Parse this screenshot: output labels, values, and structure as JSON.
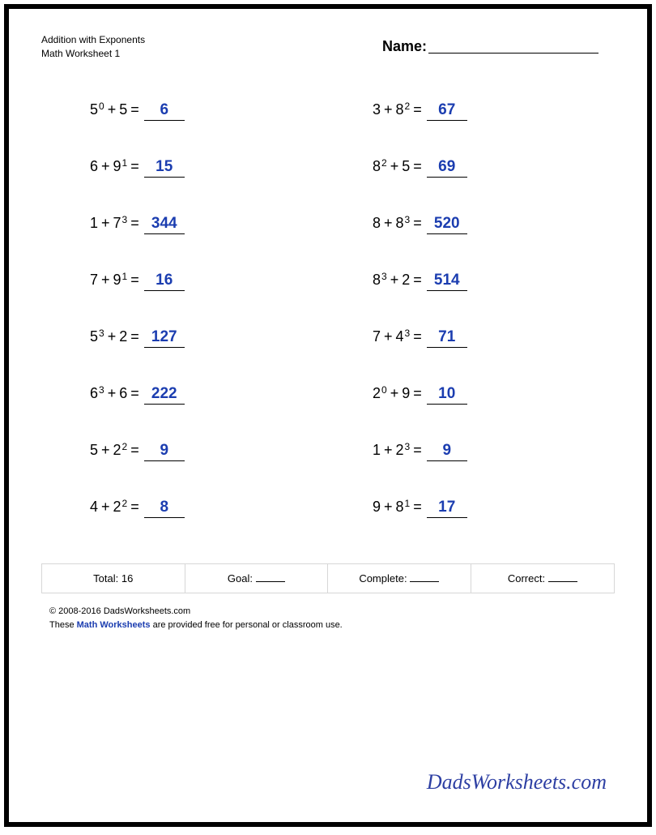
{
  "header": {
    "title_line1": "Addition with Exponents",
    "title_line2": "Math Worksheet 1",
    "name_label": "Name:"
  },
  "answer_color": "#1b3db0",
  "problems": [
    {
      "t1_base": "5",
      "t1_exp": "0",
      "t2_base": "5",
      "t2_exp": "",
      "answer": "6"
    },
    {
      "t1_base": "3",
      "t1_exp": "",
      "t2_base": "8",
      "t2_exp": "2",
      "answer": "67"
    },
    {
      "t1_base": "6",
      "t1_exp": "",
      "t2_base": "9",
      "t2_exp": "1",
      "answer": "15"
    },
    {
      "t1_base": "8",
      "t1_exp": "2",
      "t2_base": "5",
      "t2_exp": "",
      "answer": "69"
    },
    {
      "t1_base": "1",
      "t1_exp": "",
      "t2_base": "7",
      "t2_exp": "3",
      "answer": "344"
    },
    {
      "t1_base": "8",
      "t1_exp": "",
      "t2_base": "8",
      "t2_exp": "3",
      "answer": "520"
    },
    {
      "t1_base": "7",
      "t1_exp": "",
      "t2_base": "9",
      "t2_exp": "1",
      "answer": "16"
    },
    {
      "t1_base": "8",
      "t1_exp": "3",
      "t2_base": "2",
      "t2_exp": "",
      "answer": "514"
    },
    {
      "t1_base": "5",
      "t1_exp": "3",
      "t2_base": "2",
      "t2_exp": "",
      "answer": "127"
    },
    {
      "t1_base": "7",
      "t1_exp": "",
      "t2_base": "4",
      "t2_exp": "3",
      "answer": "71"
    },
    {
      "t1_base": "6",
      "t1_exp": "3",
      "t2_base": "6",
      "t2_exp": "",
      "answer": "222"
    },
    {
      "t1_base": "2",
      "t1_exp": "0",
      "t2_base": "9",
      "t2_exp": "",
      "answer": "10"
    },
    {
      "t1_base": "5",
      "t1_exp": "",
      "t2_base": "2",
      "t2_exp": "2",
      "answer": "9"
    },
    {
      "t1_base": "1",
      "t1_exp": "",
      "t2_base": "2",
      "t2_exp": "3",
      "answer": "9"
    },
    {
      "t1_base": "4",
      "t1_exp": "",
      "t2_base": "2",
      "t2_exp": "2",
      "answer": "8"
    },
    {
      "t1_base": "9",
      "t1_exp": "",
      "t2_base": "8",
      "t2_exp": "1",
      "answer": "17"
    }
  ],
  "footer": {
    "total_label": "Total: ",
    "total_value": "16",
    "goal_label": "Goal: ",
    "complete_label": "Complete: ",
    "correct_label": "Correct: "
  },
  "copyright": {
    "line1": "© 2008-2016 DadsWorksheets.com",
    "line2_pre": "These ",
    "line2_link": "Math Worksheets",
    "line2_post": " are provided free for personal or classroom use."
  },
  "brand": "DadsWorksheets.com"
}
